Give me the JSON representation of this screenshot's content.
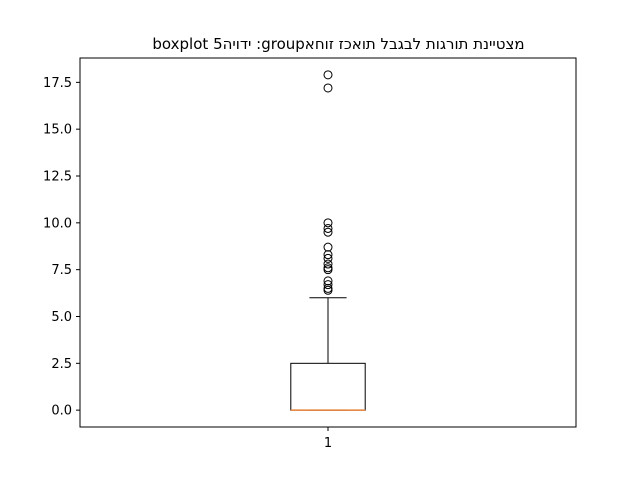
{
  "chart_data": {
    "type": "boxplot",
    "title": "מצטיינת  תורגות לבגבל תואכז זוחאgroup: ידויה5 boxplot",
    "xlabel": "",
    "ylabel": "",
    "categories": [
      "1"
    ],
    "ylim": [
      -0.9,
      18.8
    ],
    "yticks": [
      0.0,
      2.5,
      5.0,
      7.5,
      10.0,
      12.5,
      15.0,
      17.5
    ],
    "ytick_labels": [
      "0.0",
      "2.5",
      "5.0",
      "7.5",
      "10.0",
      "12.5",
      "15.0",
      "17.5"
    ],
    "boxes": [
      {
        "category": "1",
        "whisker_low": 0.0,
        "q1": 0.0,
        "median": 0.0,
        "q3": 2.5,
        "whisker_high": 6.0,
        "outliers": [
          6.4,
          6.5,
          6.7,
          6.9,
          7.5,
          7.6,
          7.8,
          8.1,
          8.3,
          8.7,
          9.5,
          9.7,
          10.0,
          17.2,
          17.9
        ]
      }
    ],
    "colors": {
      "box": "#000000",
      "median": "#e8833a",
      "outlier_edge": "#000000"
    },
    "grid": false
  }
}
